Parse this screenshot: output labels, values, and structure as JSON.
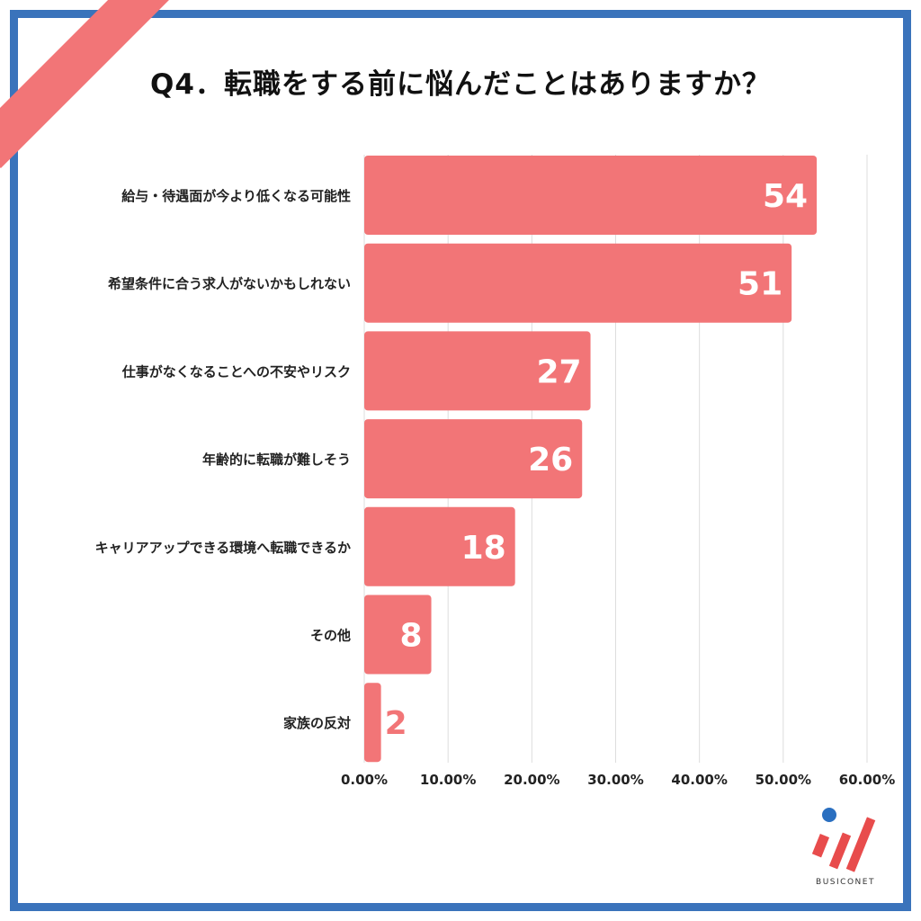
{
  "title": "Q4．転職をする前に悩んだことはありますか？",
  "colors": {
    "bar": "#f27577",
    "border": "#3a73bb",
    "grid": "#dddddd",
    "label_inside": "#ffffff",
    "label_outside": "#f27577"
  },
  "brand": {
    "name": "BUSICONET"
  },
  "chart_data": {
    "type": "bar",
    "orientation": "horizontal",
    "title": "Q4．転職をする前に悩んだことはありますか？",
    "categories": [
      "給与・待遇面が今より低くなる可能性",
      "希望条件に合う求人がないかもしれない",
      "仕事がなくなることへの不安やリスク",
      "年齢的に転職が難しそう",
      "キャリアアップできる環境へ転職できるか",
      "その他",
      "家族の反対"
    ],
    "values": [
      54,
      51,
      27,
      26,
      18,
      8,
      2
    ],
    "data_labels": [
      "54",
      "51",
      "27",
      "26",
      "18",
      "8",
      "2"
    ],
    "xlim": [
      0,
      60
    ],
    "x_tick_labels": [
      "0.00%",
      "10.00%",
      "20.00%",
      "30.00%",
      "40.00%",
      "50.00%",
      "60.00%"
    ],
    "grid": true,
    "legend": "none"
  }
}
